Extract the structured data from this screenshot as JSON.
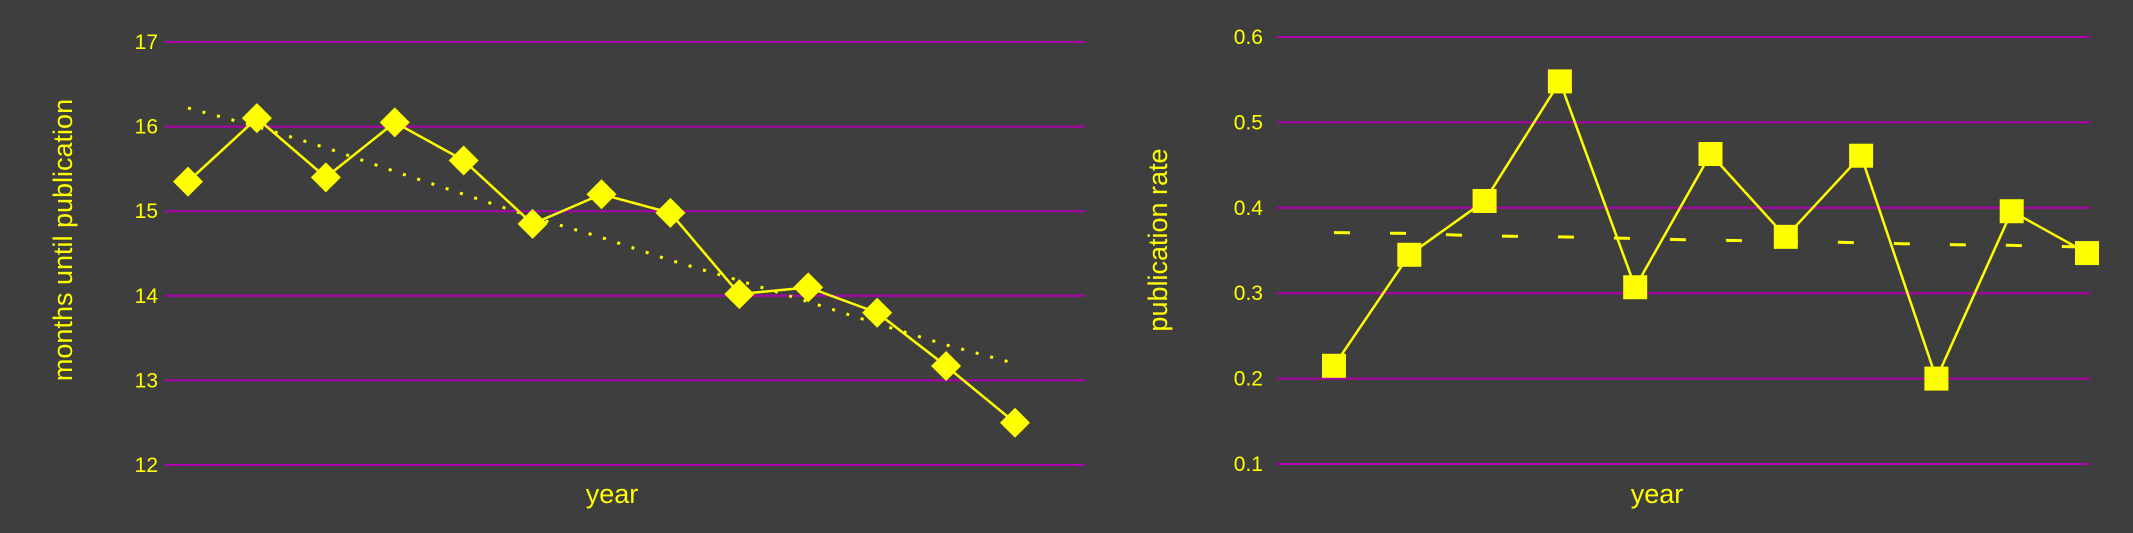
{
  "colors": {
    "background": "#3e3e3e",
    "grid": "#b000b0",
    "accent": "#ffff00"
  },
  "chart_data": [
    {
      "type": "line",
      "title": "",
      "xlabel": "year",
      "ylabel": "months until publication",
      "ylim": [
        12,
        17
      ],
      "yticks": [
        "12",
        "13",
        "14",
        "15",
        "16",
        "17"
      ],
      "grid": true,
      "marker": "diamond",
      "series": [
        {
          "role": "observed",
          "values": [
            15.35,
            16.1,
            15.4,
            16.05,
            15.6,
            14.85,
            15.2,
            14.98,
            14.02,
            14.1,
            13.8,
            13.17,
            12.5
          ]
        },
        {
          "role": "trend",
          "values": [
            16.22,
            16.0,
            15.75,
            15.47,
            15.2,
            14.93,
            14.69,
            14.42,
            14.18,
            13.93,
            13.67,
            13.42,
            13.2
          ]
        }
      ]
    },
    {
      "type": "line",
      "title": "",
      "xlabel": "year",
      "ylabel": "publication rate",
      "ylim": [
        0.05,
        0.62
      ],
      "yticks": [
        "0.1",
        "0.2",
        "0.3",
        "0.4",
        "0.5",
        "0.6"
      ],
      "grid": true,
      "marker": "square",
      "series": [
        {
          "role": "observed",
          "values": [
            0.215,
            0.345,
            0.408,
            0.548,
            0.307,
            0.463,
            0.366,
            0.461,
            0.2,
            0.396,
            0.347
          ]
        },
        {
          "role": "trend",
          "values": [
            0.371,
            0.37,
            0.367,
            0.366,
            0.364,
            0.362,
            0.361,
            0.359,
            0.357,
            0.356,
            0.354
          ]
        }
      ]
    }
  ]
}
